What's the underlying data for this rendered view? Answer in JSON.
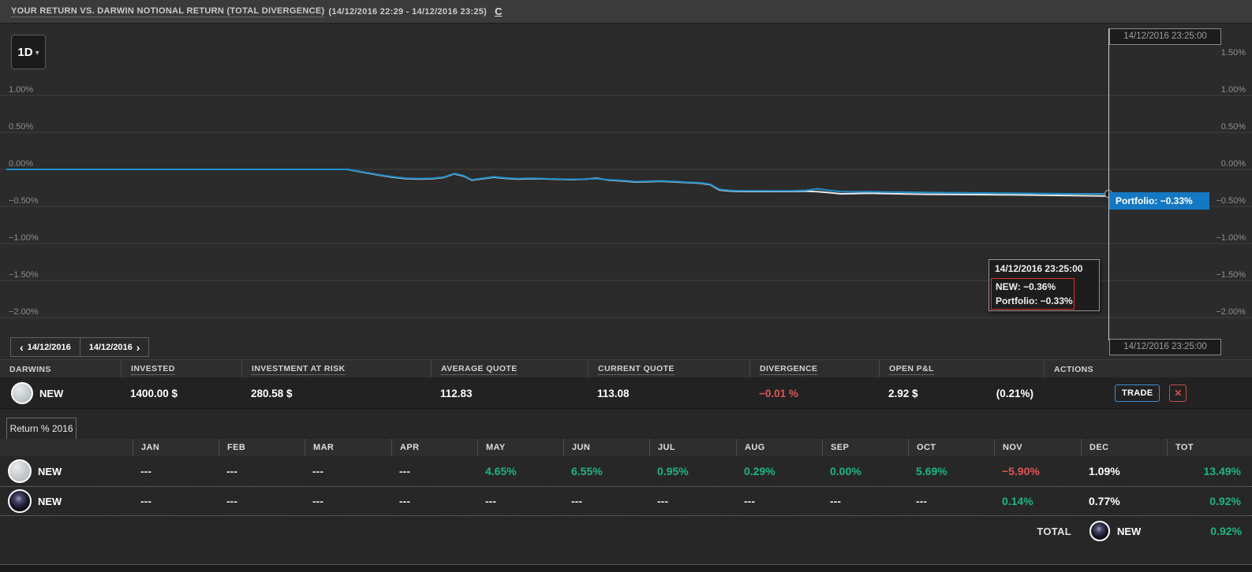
{
  "topbar": {
    "title": "YOUR RETURN VS. DARWIN NOTIONAL RETURN (TOTAL DIVERGENCE)",
    "date_range": "(14/12/2016 22:29 - 14/12/2016 23:25)",
    "refresh_label": "C"
  },
  "chart": {
    "timeframe": "1D",
    "crosshair_time": "14/12/2016 23:25:00",
    "badge_label": "Portfolio: −0.33%",
    "tooltip": {
      "title": "14/12/2016 23:25:00",
      "lines": [
        "NEW: −0.36%",
        "Portfolio: −0.33%"
      ]
    },
    "nav": {
      "prev": "14/12/2016",
      "next": "14/12/2016"
    },
    "chart_data": {
      "type": "line",
      "x_range": [
        "14/12/2016 22:29",
        "14/12/2016 23:25"
      ],
      "y_unit": "%",
      "left_axis_labels": [
        "1.00%",
        "0.50%",
        "0.00%",
        "−0.50%",
        "−1.00%",
        "−1.50%",
        "−2.00%"
      ],
      "right_axis_labels": [
        "1.50%",
        "1.00%",
        "0.50%",
        "0.00%",
        "−0.50%",
        "−1.00%",
        "−1.50%",
        "−2.00%"
      ],
      "grid": true,
      "series": [
        {
          "name": "NEW",
          "color": "#e8e8e8",
          "final_value": "−0.36%",
          "points": [
            [
              8,
              0
            ],
            [
              440,
              0
            ],
            [
              452,
              -0.022
            ],
            [
              468,
              -0.053
            ],
            [
              482,
              -0.08
            ],
            [
              498,
              -0.105
            ],
            [
              515,
              -0.125
            ],
            [
              532,
              -0.13
            ],
            [
              548,
              -0.125
            ],
            [
              562,
              -0.11
            ],
            [
              576,
              -0.06
            ],
            [
              588,
              -0.09
            ],
            [
              598,
              -0.145
            ],
            [
              612,
              -0.125
            ],
            [
              626,
              -0.105
            ],
            [
              640,
              -0.12
            ],
            [
              656,
              -0.13
            ],
            [
              672,
              -0.125
            ],
            [
              690,
              -0.128
            ],
            [
              708,
              -0.133
            ],
            [
              724,
              -0.138
            ],
            [
              742,
              -0.132
            ],
            [
              756,
              -0.12
            ],
            [
              772,
              -0.145
            ],
            [
              790,
              -0.155
            ],
            [
              806,
              -0.17
            ],
            [
              822,
              -0.165
            ],
            [
              838,
              -0.16
            ],
            [
              854,
              -0.167
            ],
            [
              870,
              -0.177
            ],
            [
              886,
              -0.185
            ],
            [
              900,
              -0.205
            ],
            [
              912,
              -0.278
            ],
            [
              926,
              -0.293
            ],
            [
              945,
              -0.298
            ],
            [
              975,
              -0.298
            ],
            [
              1005,
              -0.297
            ],
            [
              1022,
              -0.295
            ],
            [
              1036,
              -0.3
            ],
            [
              1052,
              -0.315
            ],
            [
              1066,
              -0.33
            ],
            [
              1082,
              -0.328
            ],
            [
              1100,
              -0.322
            ],
            [
              1125,
              -0.328
            ],
            [
              1150,
              -0.332
            ],
            [
              1175,
              -0.336
            ],
            [
              1200,
              -0.338
            ],
            [
              1240,
              -0.34
            ],
            [
              1280,
              -0.344
            ],
            [
              1320,
              -0.348
            ],
            [
              1360,
              -0.353
            ],
            [
              1405,
              -0.36
            ]
          ]
        },
        {
          "name": "Portfolio",
          "color": "#1e8ece",
          "final_value": "−0.33%",
          "points": [
            [
              8,
              0
            ],
            [
              440,
              0
            ],
            [
              452,
              -0.02
            ],
            [
              468,
              -0.05
            ],
            [
              482,
              -0.075
            ],
            [
              498,
              -0.1
            ],
            [
              515,
              -0.12
            ],
            [
              532,
              -0.125
            ],
            [
              548,
              -0.12
            ],
            [
              562,
              -0.105
            ],
            [
              576,
              -0.055
            ],
            [
              588,
              -0.085
            ],
            [
              598,
              -0.14
            ],
            [
              612,
              -0.12
            ],
            [
              626,
              -0.1
            ],
            [
              640,
              -0.115
            ],
            [
              656,
              -0.125
            ],
            [
              672,
              -0.12
            ],
            [
              690,
              -0.125
            ],
            [
              708,
              -0.13
            ],
            [
              724,
              -0.135
            ],
            [
              742,
              -0.13
            ],
            [
              756,
              -0.125
            ],
            [
              772,
              -0.14
            ],
            [
              790,
              -0.15
            ],
            [
              806,
              -0.165
            ],
            [
              822,
              -0.16
            ],
            [
              838,
              -0.155
            ],
            [
              854,
              -0.162
            ],
            [
              870,
              -0.172
            ],
            [
              886,
              -0.18
            ],
            [
              900,
              -0.2
            ],
            [
              912,
              -0.27
            ],
            [
              926,
              -0.285
            ],
            [
              945,
              -0.29
            ],
            [
              975,
              -0.29
            ],
            [
              1005,
              -0.288
            ],
            [
              1022,
              -0.283
            ],
            [
              1036,
              -0.262
            ],
            [
              1052,
              -0.285
            ],
            [
              1066,
              -0.3
            ],
            [
              1082,
              -0.303
            ],
            [
              1100,
              -0.3
            ],
            [
              1125,
              -0.305
            ],
            [
              1150,
              -0.308
            ],
            [
              1175,
              -0.312
            ],
            [
              1200,
              -0.315
            ],
            [
              1240,
              -0.318
            ],
            [
              1280,
              -0.322
            ],
            [
              1320,
              -0.326
            ],
            [
              1360,
              -0.33
            ],
            [
              1405,
              -0.33
            ]
          ]
        }
      ]
    }
  },
  "positions_table": {
    "columns": [
      {
        "label": "DARWINS",
        "underline": false
      },
      {
        "label": "INVESTED",
        "underline": true
      },
      {
        "label": "INVESTMENT AT RISK",
        "underline": true
      },
      {
        "label": "AVERAGE QUOTE",
        "underline": true
      },
      {
        "label": "CURRENT QUOTE",
        "underline": true
      },
      {
        "label": "DIVERGENCE",
        "underline": true
      },
      {
        "label": "OPEN P&L",
        "underline": true
      },
      {
        "label": "ACTIONS",
        "underline": false
      }
    ],
    "row": {
      "name": "NEW",
      "invested": "1400.00 $",
      "investment_at_risk": "280.58 $",
      "average_quote": "112.83",
      "current_quote": "113.08",
      "divergence": "−0.01 %",
      "open_pl": "2.92 $",
      "open_pl_pct": "(0.21%)",
      "trade_label": "TRADE",
      "close_label": "✕"
    }
  },
  "monthly_table": {
    "tab": "Return % 2016",
    "months": [
      "JAN",
      "FEB",
      "MAR",
      "APR",
      "MAY",
      "JUN",
      "JUL",
      "AUG",
      "SEP",
      "OCT",
      "NOV",
      "DEC",
      "TOT"
    ],
    "rows": [
      {
        "name": "NEW",
        "avatar": "light",
        "values": [
          {
            "t": "---",
            "c": "muted"
          },
          {
            "t": "---",
            "c": "muted"
          },
          {
            "t": "---",
            "c": "muted"
          },
          {
            "t": "---",
            "c": "muted"
          },
          {
            "t": "4.65%",
            "c": "green"
          },
          {
            "t": "6.55%",
            "c": "green"
          },
          {
            "t": "0.95%",
            "c": "green"
          },
          {
            "t": "0.29%",
            "c": "green"
          },
          {
            "t": "0.00%",
            "c": "green"
          },
          {
            "t": "5.69%",
            "c": "green"
          },
          {
            "t": "−5.90%",
            "c": "red"
          },
          {
            "t": "1.09%",
            "c": "white"
          },
          {
            "t": "13.49%",
            "c": "green"
          }
        ]
      },
      {
        "name": "NEW",
        "avatar": "galaxy",
        "values": [
          {
            "t": "---",
            "c": "muted"
          },
          {
            "t": "---",
            "c": "muted"
          },
          {
            "t": "---",
            "c": "muted"
          },
          {
            "t": "---",
            "c": "muted"
          },
          {
            "t": "---",
            "c": "muted"
          },
          {
            "t": "---",
            "c": "muted"
          },
          {
            "t": "---",
            "c": "muted"
          },
          {
            "t": "---",
            "c": "muted"
          },
          {
            "t": "---",
            "c": "muted"
          },
          {
            "t": "---",
            "c": "muted"
          },
          {
            "t": "0.14%",
            "c": "green"
          },
          {
            "t": "0.77%",
            "c": "white"
          },
          {
            "t": "0.92%",
            "c": "green"
          }
        ]
      }
    ],
    "total": {
      "label": "TOTAL",
      "name": "NEW",
      "value": "0.92%",
      "color": "green"
    }
  },
  "colors": {
    "accent_blue": "#1e8ece",
    "badge_blue": "#1578c2",
    "positive_green": "#1fb584",
    "negative_red": "#e05555",
    "series_white": "#e8e8e8"
  }
}
